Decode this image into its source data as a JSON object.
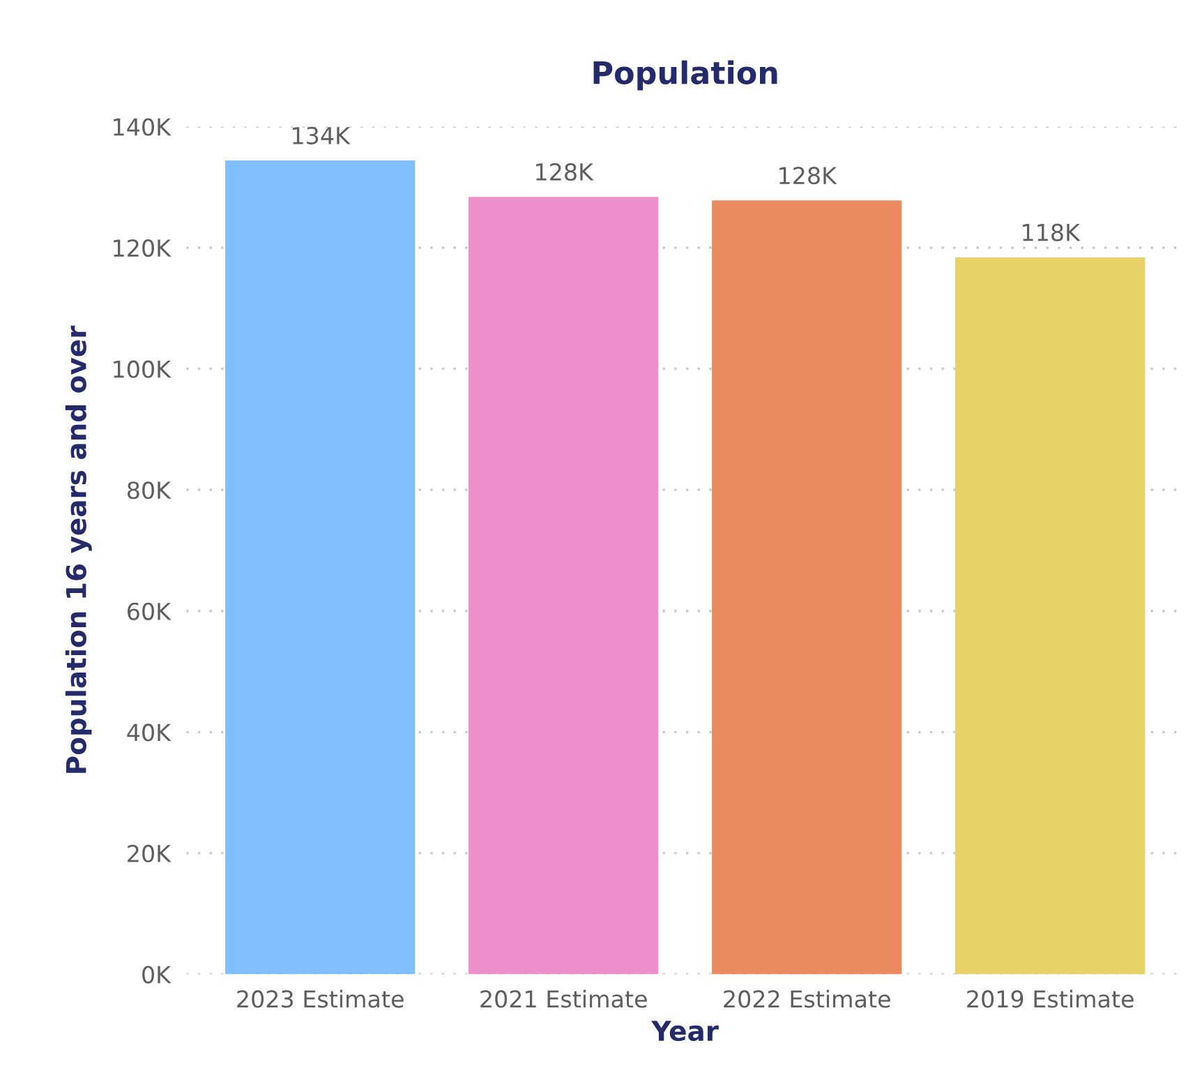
{
  "chart_data": {
    "type": "bar",
    "title": "Population",
    "xlabel": "Year",
    "ylabel": "Population 16 years and over",
    "categories": [
      "2023 Estimate",
      "2021 Estimate",
      "2022 Estimate",
      "2019 Estimate"
    ],
    "values": [
      134400,
      128400,
      127800,
      118400
    ],
    "colors": [
      "#7fbfff",
      "#ec8fcb",
      "#ea8a5e",
      "#e8d166"
    ],
    "value_labels": [
      "134K",
      "128K",
      "128K",
      "118K"
    ],
    "ylim": [
      0,
      140000
    ],
    "yticks": [
      {
        "value": 0,
        "label": "0K"
      },
      {
        "value": 20000,
        "label": "20K"
      },
      {
        "value": 40000,
        "label": "40K"
      },
      {
        "value": 60000,
        "label": "60K"
      },
      {
        "value": 80000,
        "label": "80K"
      },
      {
        "value": 100000,
        "label": "100K"
      },
      {
        "value": 120000,
        "label": "120K"
      },
      {
        "value": 140000,
        "label": "140K"
      }
    ],
    "grid": "y",
    "legend": false
  }
}
